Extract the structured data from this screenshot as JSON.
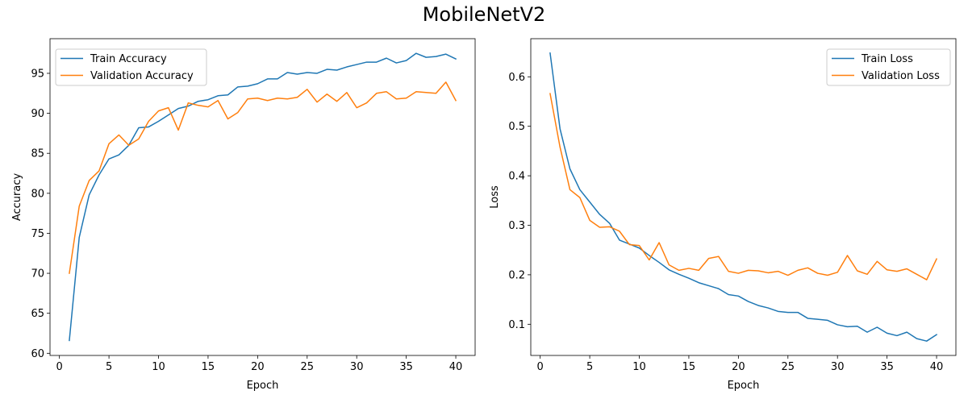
{
  "figure": {
    "title": "MobileNetV2"
  },
  "colors": {
    "train": "#1f77b4",
    "validation": "#ff7f0e"
  },
  "chart_data": [
    {
      "type": "line",
      "xlabel": "Epoch",
      "ylabel": "Accuracy",
      "xlim": [
        -0.95,
        41.95
      ],
      "ylim": [
        59.73,
        99.33
      ],
      "xticks": [
        0,
        5,
        10,
        15,
        20,
        25,
        30,
        35,
        40
      ],
      "yticks": [
        60,
        65,
        70,
        75,
        80,
        85,
        90,
        95
      ],
      "legend": "top-left",
      "grid": false,
      "x": [
        1,
        2,
        3,
        4,
        5,
        6,
        7,
        8,
        9,
        10,
        11,
        12,
        13,
        14,
        15,
        16,
        17,
        18,
        19,
        20,
        21,
        22,
        23,
        24,
        25,
        26,
        27,
        28,
        29,
        30,
        31,
        32,
        33,
        34,
        35,
        36,
        37,
        38,
        39,
        40
      ],
      "series": [
        {
          "name": "Train Accuracy",
          "color": "#1f77b4",
          "values": [
            61.6,
            74.5,
            79.8,
            82.3,
            84.3,
            84.8,
            86.0,
            88.2,
            88.3,
            89.0,
            89.8,
            90.6,
            90.9,
            91.5,
            91.7,
            92.2,
            92.3,
            93.3,
            93.4,
            93.7,
            94.3,
            94.3,
            95.1,
            94.9,
            95.1,
            95.0,
            95.5,
            95.4,
            95.8,
            96.1,
            96.4,
            96.4,
            96.9,
            96.3,
            96.6,
            97.5,
            97.0,
            97.1,
            97.4,
            96.8
          ]
        },
        {
          "name": "Validation Accuracy",
          "color": "#ff7f0e",
          "values": [
            70.0,
            78.4,
            81.6,
            82.8,
            86.2,
            87.3,
            86.0,
            86.8,
            89.0,
            90.3,
            90.7,
            87.9,
            91.3,
            91.0,
            90.8,
            91.6,
            89.3,
            90.1,
            91.8,
            91.9,
            91.6,
            91.9,
            91.8,
            92.0,
            93.0,
            91.4,
            92.4,
            91.5,
            92.6,
            90.7,
            91.3,
            92.5,
            92.7,
            91.8,
            91.9,
            92.7,
            92.6,
            92.5,
            93.9,
            91.6
          ]
        }
      ]
    },
    {
      "type": "line",
      "xlabel": "Epoch",
      "ylabel": "Loss",
      "xlim": [
        -0.95,
        41.95
      ],
      "ylim": [
        0.037,
        0.677
      ],
      "xticks": [
        0,
        5,
        10,
        15,
        20,
        25,
        30,
        35,
        40
      ],
      "yticks": [
        0.1,
        0.2,
        0.3,
        0.4,
        0.5,
        0.6
      ],
      "legend": "top-right",
      "grid": false,
      "x": [
        1,
        2,
        3,
        4,
        5,
        6,
        7,
        8,
        9,
        10,
        11,
        12,
        13,
        14,
        15,
        16,
        17,
        18,
        19,
        20,
        21,
        22,
        23,
        24,
        25,
        26,
        27,
        28,
        29,
        30,
        31,
        32,
        33,
        34,
        35,
        36,
        37,
        38,
        39,
        40
      ],
      "series": [
        {
          "name": "Train Loss",
          "color": "#1f77b4",
          "values": [
            0.648,
            0.495,
            0.414,
            0.372,
            0.347,
            0.322,
            0.304,
            0.27,
            0.262,
            0.254,
            0.239,
            0.225,
            0.21,
            0.201,
            0.193,
            0.184,
            0.178,
            0.172,
            0.16,
            0.157,
            0.146,
            0.138,
            0.133,
            0.126,
            0.124,
            0.124,
            0.112,
            0.11,
            0.108,
            0.099,
            0.095,
            0.096,
            0.084,
            0.094,
            0.082,
            0.077,
            0.084,
            0.071,
            0.066,
            0.079
          ]
        },
        {
          "name": "Validation Loss",
          "color": "#ff7f0e",
          "values": [
            0.566,
            0.458,
            0.372,
            0.356,
            0.31,
            0.296,
            0.297,
            0.288,
            0.261,
            0.259,
            0.23,
            0.265,
            0.22,
            0.209,
            0.213,
            0.209,
            0.233,
            0.237,
            0.207,
            0.203,
            0.209,
            0.208,
            0.204,
            0.207,
            0.199,
            0.209,
            0.214,
            0.203,
            0.199,
            0.205,
            0.239,
            0.208,
            0.201,
            0.227,
            0.21,
            0.207,
            0.212,
            0.201,
            0.19,
            0.232
          ]
        }
      ]
    }
  ]
}
